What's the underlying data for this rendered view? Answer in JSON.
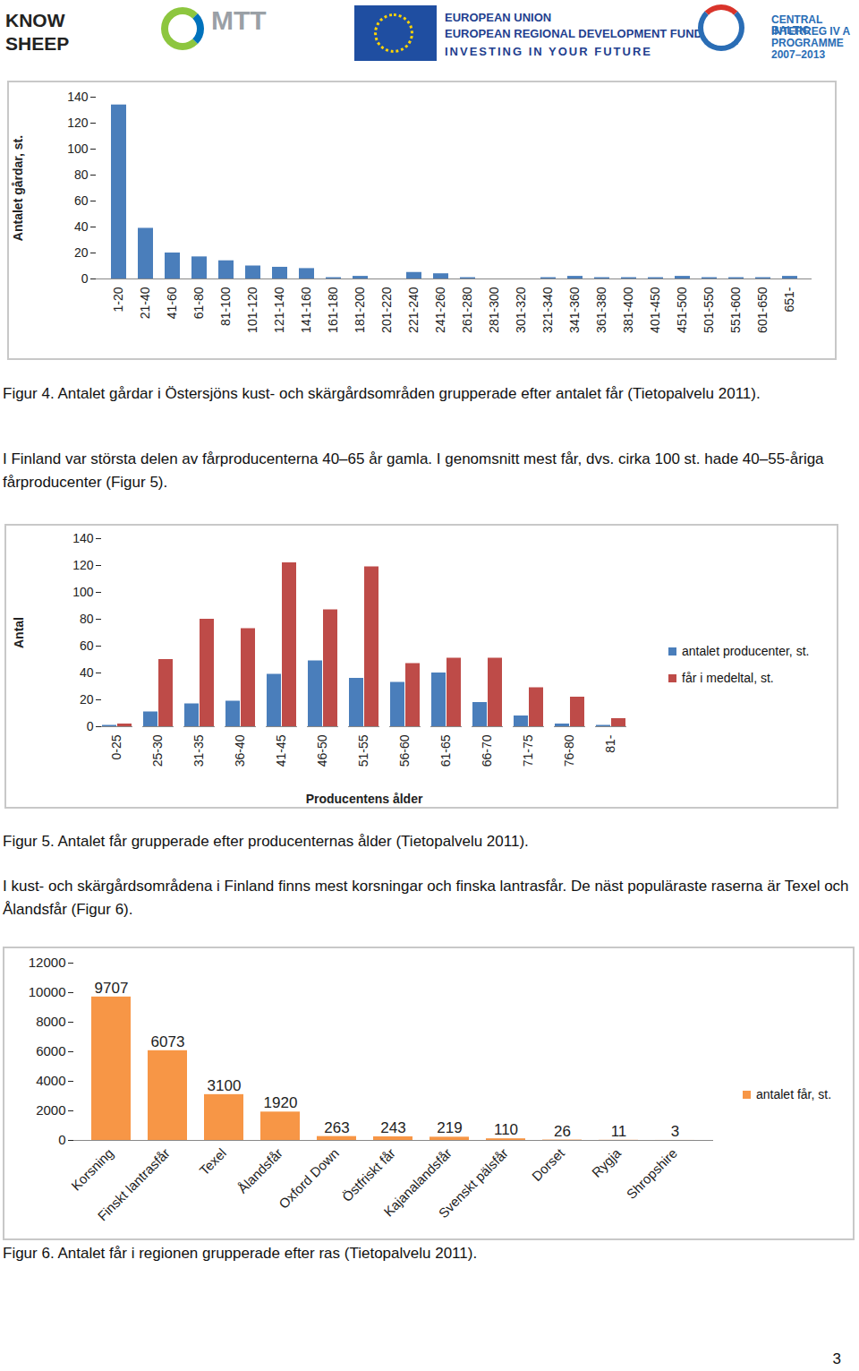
{
  "header": {
    "logos": [
      "KNOW",
      "SHEEP",
      "MTT",
      "EUROPEAN UNION",
      "EUROPEAN REGIONAL DEVELOPMENT FUND",
      "INVESTING IN YOUR FUTURE",
      "CENTRAL BALTIC",
      "INTERREG IV A",
      "PROGRAMME",
      "2007–2013"
    ]
  },
  "chart_data": [
    {
      "type": "bar",
      "y_label": "Antalet gårdar, st.",
      "categories": [
        "1-20",
        "21-40",
        "41-60",
        "61-80",
        "81-100",
        "101-120",
        "121-140",
        "141-160",
        "161-180",
        "181-200",
        "201-220",
        "221-240",
        "241-260",
        "261-280",
        "281-300",
        "301-320",
        "321-340",
        "341-360",
        "361-380",
        "381-400",
        "401-450",
        "451-500",
        "501-550",
        "551-600",
        "601-650",
        "651-"
      ],
      "values": [
        134,
        39,
        20,
        17,
        14,
        10,
        9,
        8,
        1,
        2,
        0,
        5,
        4,
        1,
        0,
        0,
        1,
        2,
        1,
        1,
        1,
        2,
        1,
        1,
        1,
        2
      ],
      "color": "#4a7ebb",
      "ylim": [
        0,
        140
      ],
      "yticks": [
        0,
        20,
        40,
        60,
        80,
        100,
        120,
        140
      ],
      "grid": false
    },
    {
      "type": "bar",
      "x_label": "Producentens ålder",
      "y_label": "Antal",
      "categories": [
        "0-25",
        "25-30",
        "31-35",
        "36-40",
        "41-45",
        "46-50",
        "51-55",
        "56-60",
        "61-65",
        "66-70",
        "71-75",
        "76-80",
        "81-"
      ],
      "series": [
        {
          "name": "antalet producenter, st.",
          "color": "#4a7ebb",
          "values": [
            1,
            11,
            17,
            19,
            39,
            49,
            36,
            33,
            40,
            18,
            8,
            2,
            1
          ]
        },
        {
          "name": "får i medeltal, st.",
          "color": "#be4b48",
          "values": [
            2,
            50,
            80,
            73,
            122,
            87,
            119,
            47,
            51,
            51,
            29,
            22,
            6
          ]
        }
      ],
      "ylim": [
        0,
        140
      ],
      "yticks": [
        0,
        20,
        40,
        60,
        80,
        100,
        120,
        140
      ],
      "legend": "right",
      "grid": false
    },
    {
      "type": "bar",
      "categories": [
        "Korsning",
        "Finskt lantrasfår",
        "Texel",
        "Ålandsfår",
        "Oxford Down",
        "Östfriskt får",
        "Kajanalandsfår",
        "Svenskt pälsfår",
        "Dorset",
        "Rygja",
        "Shropshire"
      ],
      "series": [
        {
          "name": "antalet får, st.",
          "color": "#f79646",
          "values": [
            9707,
            6073,
            3100,
            1920,
            263,
            243,
            219,
            110,
            26,
            11,
            3
          ]
        }
      ],
      "ylim": [
        0,
        12000
      ],
      "yticks": [
        0,
        2000,
        4000,
        6000,
        8000,
        10000,
        12000
      ],
      "data_labels": true,
      "legend": "right",
      "grid": false
    }
  ],
  "document": {
    "figure_captions": [
      "Figur 4. Antalet gårdar i Östersjöns kust- och skärgårdsområden grupperade efter antalet får (Tietopalvelu 2011).",
      "Figur 5. Antalet får grupperade efter producenternas ålder (Tietopalvelu 2011).",
      "Figur 6. Antalet får i regionen grupperade efter ras (Tietopalvelu 2011)."
    ],
    "paragraphs": [
      "I Finland var största delen av fårproducenterna 40–65 år gamla. I genomsnitt mest får, dvs. cirka 100 st. hade 40–55-åriga fårproducenter (Figur 5).",
      "I kust- och skärgårdsområdena i Finland finns mest korsningar och finska lantrasfår. De näst populäraste raserna är Texel och Ålandsfår (Figur 6)."
    ],
    "page_number": 3
  }
}
